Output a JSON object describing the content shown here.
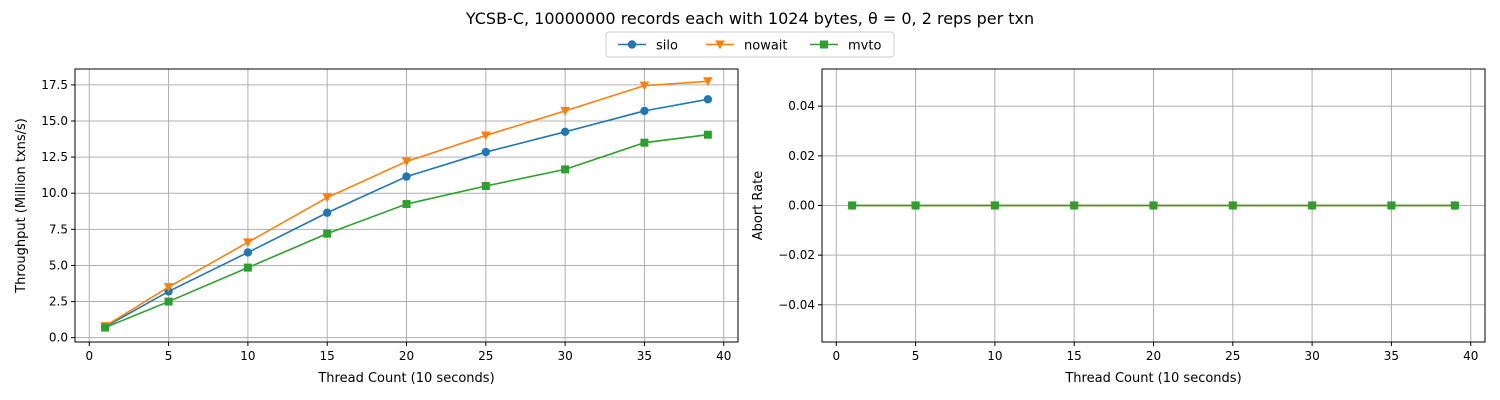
{
  "figure": {
    "title": "YCSB-C, 10000000 records each with 1024 bytes, θ = 0, 2 reps per txn"
  },
  "legend": {
    "placement": "top-center",
    "entries": [
      {
        "name": "silo",
        "color": "#1f77b4",
        "marker": "circle"
      },
      {
        "name": "nowait",
        "color": "#ff7f0e",
        "marker": "triangle-down"
      },
      {
        "name": "mvto",
        "color": "#2ca02c",
        "marker": "square"
      }
    ]
  },
  "chart_data": [
    {
      "type": "line",
      "xlabel": "Thread Count (10 seconds)",
      "ylabel": "Throughput (Million txns/s)",
      "xlim": [
        -0.9,
        40.9
      ],
      "ylim": [
        -0.3,
        18.6
      ],
      "xticks": [
        0,
        5,
        10,
        15,
        20,
        25,
        30,
        35,
        40
      ],
      "yticks": [
        0.0,
        2.5,
        5.0,
        7.5,
        10.0,
        12.5,
        15.0,
        17.5
      ],
      "ytick_labels": [
        "0.0",
        "2.5",
        "5.0",
        "7.5",
        "10.0",
        "12.5",
        "15.0",
        "17.5"
      ],
      "grid": true,
      "x": [
        1,
        5,
        10,
        15,
        20,
        25,
        30,
        35,
        39
      ],
      "series": [
        {
          "name": "silo",
          "color": "#1f77b4",
          "marker": "circle",
          "values": [
            0.75,
            3.2,
            5.9,
            8.65,
            11.15,
            12.85,
            14.25,
            15.7,
            16.5
          ]
        },
        {
          "name": "nowait",
          "color": "#ff7f0e",
          "marker": "triangle-down",
          "values": [
            0.8,
            3.5,
            6.6,
            9.7,
            12.2,
            14.0,
            15.7,
            17.45,
            17.75
          ]
        },
        {
          "name": "mvto",
          "color": "#2ca02c",
          "marker": "square",
          "values": [
            0.7,
            2.5,
            4.85,
            7.2,
            9.25,
            10.5,
            11.65,
            13.5,
            14.05
          ]
        }
      ]
    },
    {
      "type": "line",
      "xlabel": "Thread Count (10 seconds)",
      "ylabel": "Abort Rate",
      "xlim": [
        -0.9,
        40.9
      ],
      "ylim": [
        -0.055,
        0.055
      ],
      "xticks": [
        0,
        5,
        10,
        15,
        20,
        25,
        30,
        35,
        40
      ],
      "yticks": [
        -0.04,
        -0.02,
        0.0,
        0.02,
        0.04
      ],
      "ytick_labels": [
        "−0.04",
        "−0.02",
        "0.00",
        "0.02",
        "0.04"
      ],
      "grid": true,
      "x": [
        1,
        5,
        10,
        15,
        20,
        25,
        30,
        35,
        39
      ],
      "series": [
        {
          "name": "silo",
          "color": "#1f77b4",
          "marker": "circle",
          "values": [
            0,
            0,
            0,
            0,
            0,
            0,
            0,
            0,
            0
          ]
        },
        {
          "name": "nowait",
          "color": "#ff7f0e",
          "marker": "triangle-down",
          "values": [
            0,
            0,
            0,
            0,
            0,
            0,
            0,
            0,
            0
          ]
        },
        {
          "name": "mvto",
          "color": "#2ca02c",
          "marker": "square",
          "values": [
            0,
            0,
            0,
            0,
            0,
            0,
            0,
            0,
            0
          ]
        }
      ]
    }
  ]
}
